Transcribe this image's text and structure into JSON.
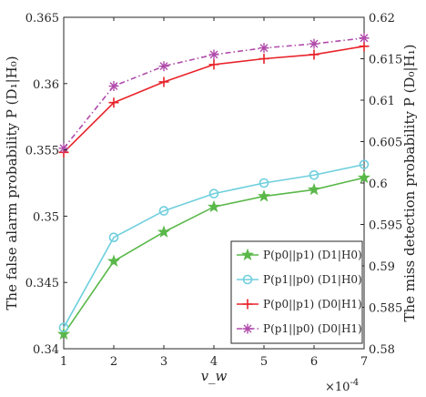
{
  "chart_data": {
    "type": "line",
    "x": [
      1,
      2,
      3,
      4,
      5,
      6,
      7
    ],
    "xlabel": "v_w",
    "xlim": [
      1,
      7
    ],
    "x_exponent_label": "×10",
    "x_exponent": "-4",
    "x_tick_labels": [
      "1",
      "2",
      "3",
      "4",
      "5",
      "6",
      "7"
    ],
    "ylabel_left": "The false alarm probability P (D₁|H₀)",
    "ylim_left": [
      0.34,
      0.365
    ],
    "y_left_tick_values": [
      0.34,
      0.345,
      0.35,
      0.355,
      0.36,
      0.365
    ],
    "y_left_tick_labels": [
      "0.34",
      "0.345",
      "0.35",
      "0.355",
      "0.36",
      "0.365"
    ],
    "ylabel_right": "The miss detection probability P (D₀|H₁)",
    "ylim_right": [
      0.58,
      0.62
    ],
    "y_right_tick_values": [
      0.58,
      0.585,
      0.59,
      0.595,
      0.6,
      0.605,
      0.61,
      0.615,
      0.62
    ],
    "y_right_tick_labels": [
      "0.58",
      "0.585",
      "0.59",
      "0.595",
      "0.6",
      "0.605",
      "0.61",
      "0.615",
      "0.62"
    ],
    "grid": false,
    "legend_position": "bottom-right",
    "series": [
      {
        "name": "P(p0||p1) (D1|H0)",
        "axis": "left",
        "color": "#5ab84a",
        "marker": "star",
        "dash": "solid",
        "values": [
          0.3411,
          0.3466,
          0.3488,
          0.3507,
          0.3515,
          0.352,
          0.3529
        ]
      },
      {
        "name": "P(p1||p0) (D1|H0)",
        "axis": "left",
        "color": "#6fcfdd",
        "marker": "circle",
        "dash": "solid",
        "values": [
          0.3416,
          0.3484,
          0.3504,
          0.3517,
          0.3525,
          0.3531,
          0.3539
        ]
      },
      {
        "name": "P(p0||p1) (D0|H1)",
        "axis": "right",
        "color": "#e8232a",
        "marker": "plus",
        "dash": "solid",
        "values": [
          0.6037,
          0.6097,
          0.6122,
          0.6143,
          0.615,
          0.6155,
          0.6165
        ]
      },
      {
        "name": "P(p1||p0) (D0|H1)",
        "axis": "right",
        "color": "#b04bab",
        "marker": "asterisk",
        "dash": "dashdot",
        "values": [
          0.6042,
          0.6117,
          0.6141,
          0.6155,
          0.6163,
          0.6168,
          0.6175
        ]
      }
    ]
  }
}
